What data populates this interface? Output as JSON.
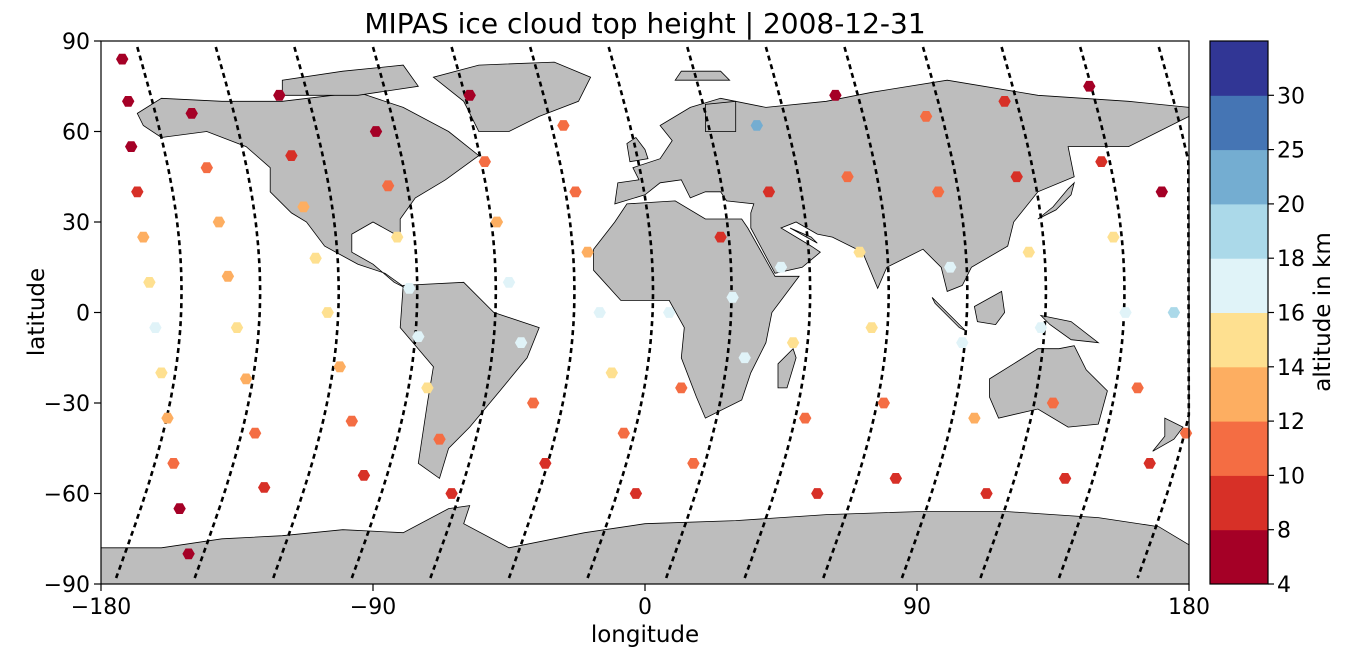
{
  "chart_data": {
    "type": "scatter",
    "title": "MIPAS ice cloud top height | 2008-12-31",
    "xlabel": "longitude",
    "ylabel": "latitude",
    "xlim": [
      -180,
      180
    ],
    "ylim": [
      -90,
      90
    ],
    "xticks": [
      "−180",
      "−90",
      "0",
      "90",
      "180"
    ],
    "yticks": [
      "90",
      "60",
      "30",
      "0",
      "−30",
      "−60",
      "−90"
    ],
    "grid": false,
    "basemap": "world land masses (grey)",
    "colorbar": {
      "label": "altitude in km",
      "boundaries": [
        4,
        8,
        10,
        12,
        14,
        16,
        18,
        20,
        25,
        30
      ],
      "colors": [
        "#a50026",
        "#d73027",
        "#f46d43",
        "#fdae61",
        "#fee090",
        "#e0f3f8",
        "#abd9e9",
        "#74add1",
        "#4575b4",
        "#313695"
      ],
      "tick_labels": [
        "4",
        "8",
        "10",
        "12",
        "14",
        "16",
        "18",
        "20",
        "25",
        "30"
      ]
    },
    "orbit_track": "black dashed",
    "series": [
      {
        "name": "",
        "points": [
          {
            "lon": -173,
            "lat": 84,
            "alt": 7
          },
          {
            "lon": -171,
            "lat": 70,
            "alt": 6
          },
          {
            "lon": -170,
            "lat": 55,
            "alt": 7
          },
          {
            "lon": -168,
            "lat": 40,
            "alt": 9
          },
          {
            "lon": -166,
            "lat": 25,
            "alt": 12
          },
          {
            "lon": -164,
            "lat": 10,
            "alt": 15
          },
          {
            "lon": -162,
            "lat": -5,
            "alt": 16
          },
          {
            "lon": -160,
            "lat": -20,
            "alt": 14
          },
          {
            "lon": -158,
            "lat": -35,
            "alt": 12
          },
          {
            "lon": -156,
            "lat": -50,
            "alt": 10
          },
          {
            "lon": -154,
            "lat": -65,
            "alt": 7
          },
          {
            "lon": -151,
            "lat": -80,
            "alt": 6
          },
          {
            "lon": -150,
            "lat": 66,
            "alt": 5
          },
          {
            "lon": -145,
            "lat": 48,
            "alt": 10
          },
          {
            "lon": -141,
            "lat": 30,
            "alt": 12
          },
          {
            "lon": -138,
            "lat": 12,
            "alt": 13
          },
          {
            "lon": -135,
            "lat": -5,
            "alt": 15
          },
          {
            "lon": -132,
            "lat": -22,
            "alt": 13
          },
          {
            "lon": -129,
            "lat": -40,
            "alt": 11
          },
          {
            "lon": -126,
            "lat": -58,
            "alt": 9
          },
          {
            "lon": -121,
            "lat": 72,
            "alt": 7
          },
          {
            "lon": -117,
            "lat": 52,
            "alt": 9
          },
          {
            "lon": -113,
            "lat": 35,
            "alt": 13
          },
          {
            "lon": -109,
            "lat": 18,
            "alt": 14
          },
          {
            "lon": -105,
            "lat": 0,
            "alt": 15
          },
          {
            "lon": -101,
            "lat": -18,
            "alt": 13
          },
          {
            "lon": -97,
            "lat": -36,
            "alt": 11
          },
          {
            "lon": -93,
            "lat": -54,
            "alt": 9
          },
          {
            "lon": -89,
            "lat": 60,
            "alt": 7
          },
          {
            "lon": -85,
            "lat": 42,
            "alt": 10
          },
          {
            "lon": -82,
            "lat": 25,
            "alt": 15
          },
          {
            "lon": -78,
            "lat": 8,
            "alt": 17
          },
          {
            "lon": -75,
            "lat": -8,
            "alt": 17
          },
          {
            "lon": -72,
            "lat": -25,
            "alt": 15
          },
          {
            "lon": -68,
            "lat": -42,
            "alt": 11
          },
          {
            "lon": -64,
            "lat": -60,
            "alt": 9
          },
          {
            "lon": -58,
            "lat": 72,
            "alt": 7
          },
          {
            "lon": -53,
            "lat": 50,
            "alt": 10
          },
          {
            "lon": -49,
            "lat": 30,
            "alt": 12
          },
          {
            "lon": -45,
            "lat": 10,
            "alt": 17
          },
          {
            "lon": -41,
            "lat": -10,
            "alt": 17
          },
          {
            "lon": -37,
            "lat": -30,
            "alt": 11
          },
          {
            "lon": -33,
            "lat": -50,
            "alt": 9
          },
          {
            "lon": -27,
            "lat": 62,
            "alt": 10
          },
          {
            "lon": -23,
            "lat": 40,
            "alt": 11
          },
          {
            "lon": -19,
            "lat": 20,
            "alt": 13
          },
          {
            "lon": -15,
            "lat": 0,
            "alt": 16
          },
          {
            "lon": -11,
            "lat": -20,
            "alt": 14
          },
          {
            "lon": -7,
            "lat": -40,
            "alt": 10
          },
          {
            "lon": -3,
            "lat": -60,
            "alt": 8
          },
          {
            "lon": 8,
            "lat": 0,
            "alt": 17
          },
          {
            "lon": 12,
            "lat": -25,
            "alt": 11
          },
          {
            "lon": 16,
            "lat": -50,
            "alt": 10
          },
          {
            "lon": 25,
            "lat": 25,
            "alt": 8
          },
          {
            "lon": 29,
            "lat": 5,
            "alt": 17
          },
          {
            "lon": 33,
            "lat": -15,
            "alt": 16
          },
          {
            "lon": 37,
            "lat": 62,
            "alt": 21
          },
          {
            "lon": 41,
            "lat": 40,
            "alt": 9
          },
          {
            "lon": 45,
            "lat": 15,
            "alt": 17
          },
          {
            "lon": 49,
            "lat": -10,
            "alt": 15
          },
          {
            "lon": 53,
            "lat": -35,
            "alt": 11
          },
          {
            "lon": 57,
            "lat": -60,
            "alt": 9
          },
          {
            "lon": 63,
            "lat": 72,
            "alt": 7
          },
          {
            "lon": 67,
            "lat": 45,
            "alt": 11
          },
          {
            "lon": 71,
            "lat": 20,
            "alt": 15
          },
          {
            "lon": 75,
            "lat": -5,
            "alt": 15
          },
          {
            "lon": 79,
            "lat": -30,
            "alt": 10
          },
          {
            "lon": 83,
            "lat": -55,
            "alt": 9
          },
          {
            "lon": 93,
            "lat": 65,
            "alt": 10
          },
          {
            "lon": 97,
            "lat": 40,
            "alt": 11
          },
          {
            "lon": 101,
            "lat": 15,
            "alt": 16
          },
          {
            "lon": 105,
            "lat": -10,
            "alt": 17
          },
          {
            "lon": 109,
            "lat": -35,
            "alt": 12
          },
          {
            "lon": 113,
            "lat": -60,
            "alt": 9
          },
          {
            "lon": 119,
            "lat": 70,
            "alt": 8
          },
          {
            "lon": 123,
            "lat": 45,
            "alt": 9
          },
          {
            "lon": 127,
            "lat": 20,
            "alt": 15
          },
          {
            "lon": 131,
            "lat": -5,
            "alt": 17
          },
          {
            "lon": 135,
            "lat": -30,
            "alt": 11
          },
          {
            "lon": 139,
            "lat": -55,
            "alt": 9
          },
          {
            "lon": 147,
            "lat": 75,
            "alt": 7
          },
          {
            "lon": 151,
            "lat": 50,
            "alt": 9
          },
          {
            "lon": 155,
            "lat": 25,
            "alt": 15
          },
          {
            "lon": 159,
            "lat": 0,
            "alt": 17
          },
          {
            "lon": 163,
            "lat": -25,
            "alt": 11
          },
          {
            "lon": 167,
            "lat": -50,
            "alt": 9
          },
          {
            "lon": 171,
            "lat": 40,
            "alt": 7
          },
          {
            "lon": 175,
            "lat": 0,
            "alt": 19
          },
          {
            "lon": 179,
            "lat": -40,
            "alt": 10
          }
        ]
      }
    ]
  }
}
